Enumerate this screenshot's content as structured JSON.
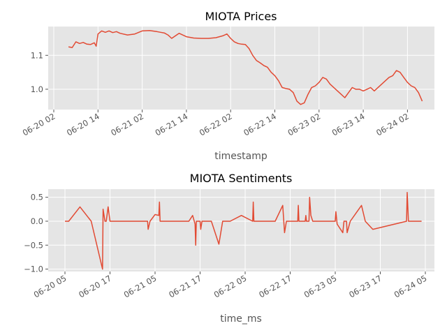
{
  "chart_data": [
    {
      "type": "line",
      "title": "MIOTA Prices",
      "xlabel": "timestamp",
      "ylabel": "",
      "ylim": [
        0.94,
        1.185
      ],
      "x_ticks": [
        "06-20 02",
        "06-20 14",
        "06-21 02",
        "06-21 14",
        "06-22 02",
        "06-22 14",
        "06-23 02",
        "06-23 14",
        "06-24 02"
      ],
      "y_ticks": [
        "1.0",
        "1.1"
      ],
      "grid": true,
      "line_color": "#E24A33",
      "background_color": "#E5E5E5",
      "series": [
        {
          "x": [
            "06-20 06",
            "06-20 07",
            "06-20 08",
            "06-20 09",
            "06-20 10",
            "06-20 11",
            "06-20 12",
            "06-20 13",
            "06-20 13:30",
            "06-20 14",
            "06-20 15",
            "06-20 16",
            "06-20 17",
            "06-20 18",
            "06-20 19",
            "06-20 20",
            "06-20 22",
            "06-21 00",
            "06-21 02",
            "06-21 04",
            "06-21 06",
            "06-21 07",
            "06-21 08",
            "06-21 09",
            "06-21 10",
            "06-21 12",
            "06-21 14",
            "06-21 16",
            "06-21 18",
            "06-21 20",
            "06-21 22",
            "06-22 00",
            "06-22 01",
            "06-22 02",
            "06-22 03",
            "06-22 04",
            "06-22 05",
            "06-22 06",
            "06-22 07",
            "06-22 08",
            "06-22 09",
            "06-22 10",
            "06-22 11",
            "06-22 12",
            "06-22 13",
            "06-22 14",
            "06-22 15",
            "06-22 16",
            "06-22 17",
            "06-22 18",
            "06-22 19",
            "06-22 20",
            "06-22 21",
            "06-22 22",
            "06-22 23",
            "06-23 00",
            "06-23 01",
            "06-23 02",
            "06-23 03",
            "06-23 04",
            "06-23 05",
            "06-23 06",
            "06-23 07",
            "06-23 08",
            "06-23 09",
            "06-23 10",
            "06-23 11",
            "06-23 12",
            "06-23 13",
            "06-23 14",
            "06-23 15",
            "06-23 16",
            "06-23 17",
            "06-23 18",
            "06-23 19",
            "06-23 20",
            "06-23 21",
            "06-23 22",
            "06-23 23",
            "06-24 00",
            "06-24 01",
            "06-24 02",
            "06-24 03",
            "06-24 04",
            "06-24 05",
            "06-24 06"
          ],
          "values": [
            1.125,
            1.123,
            1.14,
            1.135,
            1.138,
            1.133,
            1.132,
            1.137,
            1.127,
            1.163,
            1.172,
            1.168,
            1.172,
            1.167,
            1.17,
            1.165,
            1.16,
            1.163,
            1.172,
            1.173,
            1.17,
            1.168,
            1.166,
            1.16,
            1.15,
            1.165,
            1.155,
            1.151,
            1.15,
            1.15,
            1.152,
            1.158,
            1.163,
            1.15,
            1.14,
            1.135,
            1.133,
            1.132,
            1.12,
            1.1,
            1.085,
            1.078,
            1.07,
            1.065,
            1.05,
            1.04,
            1.025,
            1.005,
            1.002,
            1.0,
            0.99,
            0.965,
            0.955,
            0.96,
            0.985,
            1.005,
            1.01,
            1.02,
            1.035,
            1.03,
            1.015,
            1.005,
            0.995,
            0.985,
            0.975,
            0.99,
            1.005,
            1.0,
            1.0,
            0.995,
            1.0,
            1.005,
            0.995,
            1.005,
            1.015,
            1.025,
            1.035,
            1.04,
            1.055,
            1.05,
            1.035,
            1.02,
            1.01,
            1.005,
            0.99,
            0.965
          ]
        }
      ]
    },
    {
      "type": "line",
      "title": "MIOTA Sentiments",
      "xlabel": "time_ms",
      "ylabel": "",
      "ylim": [
        -1.05,
        0.67
      ],
      "x_ticks": [
        "06-20 05",
        "06-20 17",
        "06-21 05",
        "06-21 17",
        "06-22 05",
        "06-22 17",
        "06-23 05",
        "06-23 17",
        "06-24 05"
      ],
      "y_ticks": [
        "−1.0",
        "−0.5",
        "0.0",
        "0.5"
      ],
      "grid": true,
      "line_color": "#E24A33",
      "background_color": "#E5E5E5",
      "series": [
        {
          "x": [
            "06-20 05",
            "06-20 06",
            "06-20 09",
            "06-20 12",
            "06-20 15",
            "06-20 15:10",
            "06-20 15:40",
            "06-20 16",
            "06-20 16:30",
            "06-20 17",
            "06-21 03",
            "06-21 03:10",
            "06-21 03:40",
            "06-21 05",
            "06-21 06",
            "06-21 06:10",
            "06-21 06:20",
            "06-21 07",
            "06-21 14",
            "06-21 15",
            "06-21 15:40",
            "06-21 15:50",
            "06-21 16",
            "06-21 17",
            "06-21 17:10",
            "06-21 17:30",
            "06-21 20",
            "06-21 22",
            "06-21 23",
            "06-22 01",
            "06-22 04",
            "06-22 07",
            "06-22 07:10",
            "06-22 07:20",
            "06-22 13",
            "06-22 15",
            "06-22 15:30",
            "06-22 16",
            "06-22 17",
            "06-22 19",
            "06-22 19:10",
            "06-22 19:20",
            "06-22 21",
            "06-22 21:10",
            "06-22 21:20",
            "06-22 22",
            "06-22 22:10",
            "06-22 22:30",
            "06-22 23",
            "06-23 05",
            "06-23 05:10",
            "06-23 05:30",
            "06-23 07",
            "06-23 07:20",
            "06-23 08",
            "06-23 08:10",
            "06-23 09",
            "06-23 12",
            "06-23 13",
            "06-23 15",
            "06-24 00",
            "06-24 00:10",
            "06-24 00:30",
            "06-24 04"
          ],
          "values": [
            0.0,
            0.0,
            0.3,
            0.0,
            -1.0,
            0.25,
            0.0,
            0.0,
            0.3,
            0.0,
            0.0,
            -0.17,
            0.0,
            0.14,
            0.12,
            0.4,
            0.0,
            0.0,
            0.0,
            0.12,
            -0.06,
            -0.5,
            0.0,
            0.0,
            -0.17,
            0.0,
            0.0,
            -0.48,
            0.0,
            0.0,
            0.12,
            0.0,
            0.4,
            0.0,
            0.0,
            0.33,
            -0.24,
            0.0,
            0.0,
            0.0,
            0.33,
            0.0,
            0.0,
            0.12,
            0.0,
            0.0,
            0.5,
            0.12,
            0.0,
            0.0,
            0.2,
            -0.06,
            -0.24,
            0.0,
            0.0,
            -0.24,
            0.0,
            0.33,
            0.0,
            -0.17,
            0.0,
            0.6,
            0.0,
            0.0
          ]
        }
      ]
    }
  ]
}
